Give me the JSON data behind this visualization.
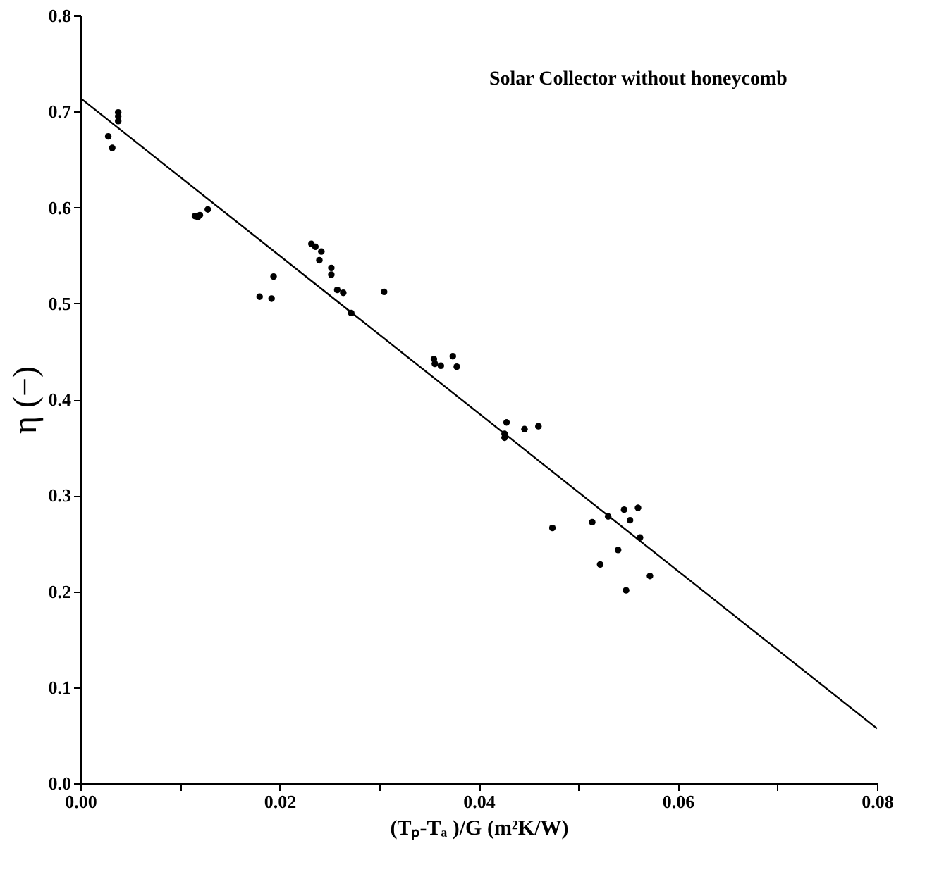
{
  "chart_data": {
    "type": "scatter",
    "xlabel": "(Tₚ-Tₐ )/G   (m²K/W)",
    "ylabel": "η  (−)",
    "annotations": [
      "Solar Collector without honeycomb"
    ],
    "x": [
      0.0028,
      0.0032,
      0.0038,
      0.0038,
      0.0038,
      0.0115,
      0.0118,
      0.012,
      0.0128,
      0.018,
      0.0192,
      0.0194,
      0.0232,
      0.0236,
      0.0242,
      0.024,
      0.0252,
      0.0252,
      0.0258,
      0.0264,
      0.0272,
      0.0305,
      0.0355,
      0.0356,
      0.0362,
      0.0374,
      0.0378,
      0.0426,
      0.0426,
      0.0428,
      0.0446,
      0.046,
      0.0474,
      0.0514,
      0.0522,
      0.053,
      0.054,
      0.0546,
      0.0548,
      0.0552,
      0.056,
      0.0562,
      0.0572
    ],
    "series": [
      {
        "type": "scatter",
        "color": "#000000",
        "marker": "circle",
        "values": [
          0.674,
          0.662,
          0.69,
          0.695,
          0.699,
          0.591,
          0.59,
          0.592,
          0.598,
          0.507,
          0.505,
          0.528,
          0.562,
          0.559,
          0.554,
          0.545,
          0.537,
          0.53,
          0.514,
          0.511,
          0.49,
          0.512,
          0.442,
          0.437,
          0.435,
          0.445,
          0.434,
          0.364,
          0.36,
          0.376,
          0.369,
          0.372,
          0.266,
          0.272,
          0.228,
          0.278,
          0.243,
          0.285,
          0.201,
          0.274,
          0.287,
          0.256,
          0.216
        ]
      },
      {
        "type": "line",
        "color": "#000000",
        "x": [
          0,
          0.08
        ],
        "values": [
          0.714,
          0.057
        ],
        "marker": "none",
        "line_style": "solid"
      }
    ],
    "xlim": [
      0,
      0.08
    ],
    "ylim": [
      0,
      0.8
    ],
    "xticks": [
      {
        "value": 0,
        "label": "0.00"
      },
      {
        "value": 0.01,
        "label": null
      },
      {
        "value": 0.02,
        "label": "0.02"
      },
      {
        "value": 0.03,
        "label": null
      },
      {
        "value": 0.04,
        "label": "0.04"
      },
      {
        "value": 0.05,
        "label": null
      },
      {
        "value": 0.06,
        "label": "0.06"
      },
      {
        "value": 0.07,
        "label": null
      },
      {
        "value": 0.08,
        "label": "0.08"
      }
    ],
    "yticks": [
      {
        "value": 0,
        "label": "0.0"
      },
      {
        "value": 0.1,
        "label": "0.1"
      },
      {
        "value": 0.2,
        "label": "0.2"
      },
      {
        "value": 0.3,
        "label": "0.3"
      },
      {
        "value": 0.4,
        "label": "0.4"
      },
      {
        "value": 0.5,
        "label": "0.5"
      },
      {
        "value": 0.6,
        "label": "0.6"
      },
      {
        "value": 0.7,
        "label": "0.7"
      },
      {
        "value": 0.8,
        "label": "0.8"
      }
    ],
    "grid": false
  }
}
